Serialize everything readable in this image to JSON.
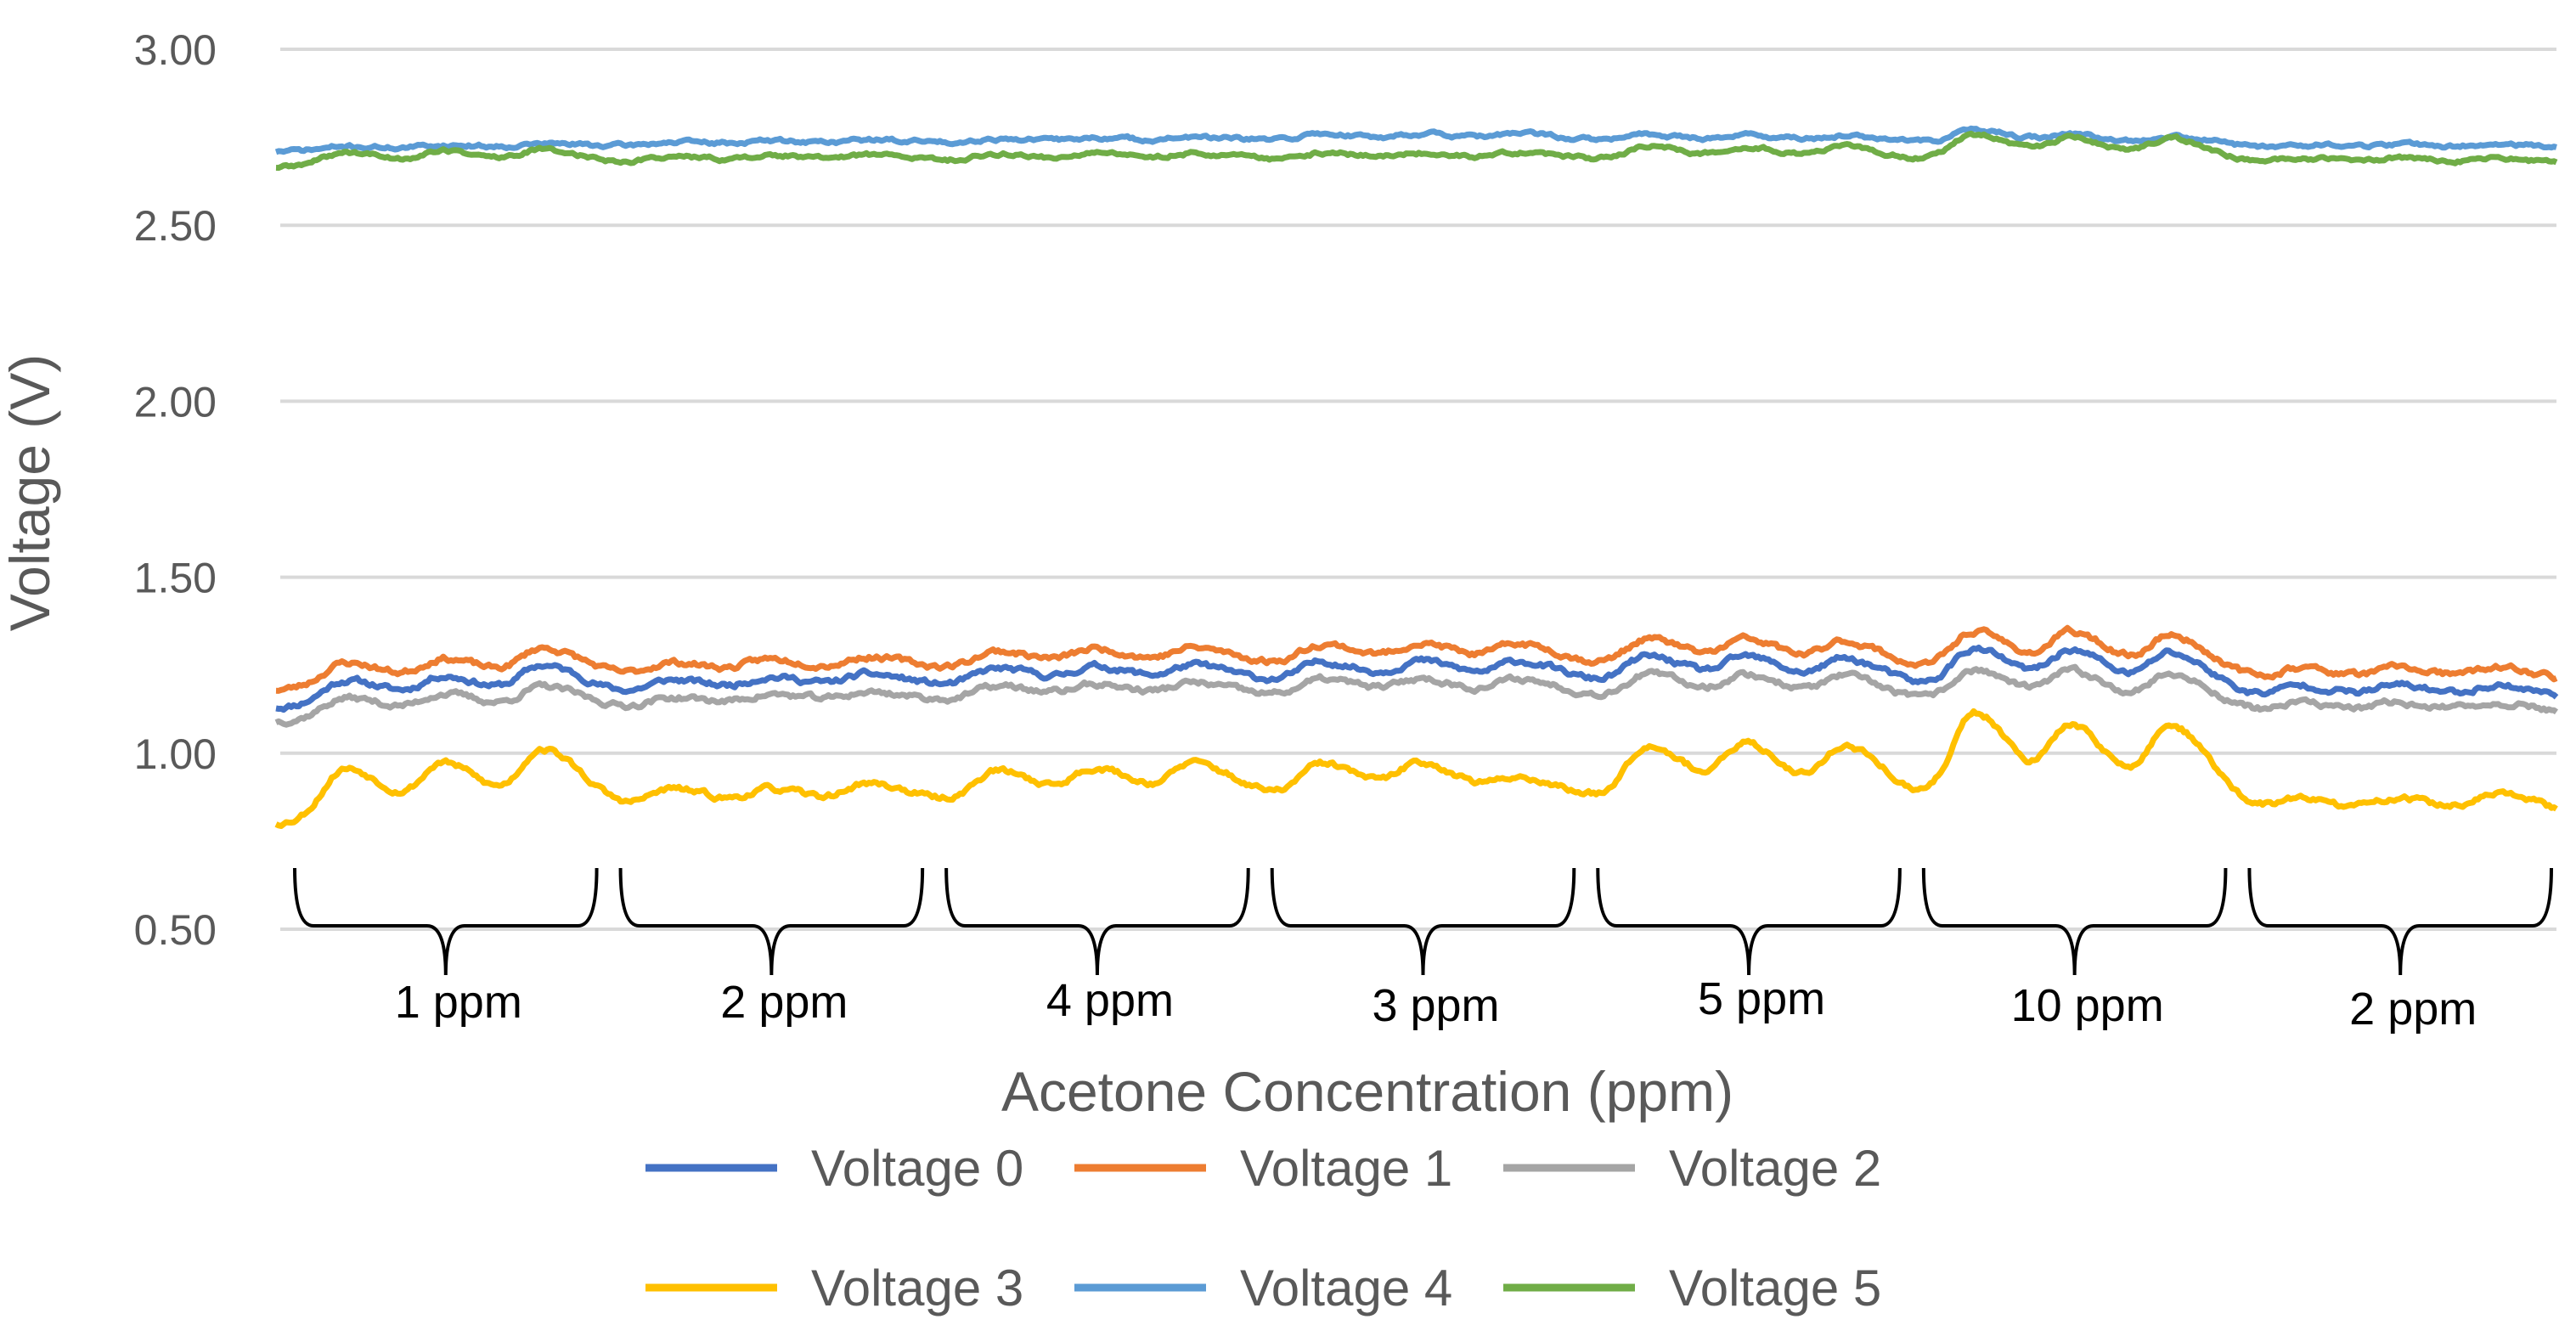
{
  "chart_data": {
    "type": "line",
    "title": "",
    "xlabel": "Acetone Concentration (ppm)",
    "ylabel": "Voltage (V)",
    "ylim": [
      0.5,
      3.0
    ],
    "yticks": [
      "0.50",
      "1.00",
      "1.50",
      "2.00",
      "2.50",
      "3.00"
    ],
    "grid": true,
    "legend_position": "bottom",
    "x_segments": [
      "1 ppm",
      "2 ppm",
      "4 ppm",
      "3 ppm",
      "5 ppm",
      "10 ppm",
      "2 ppm"
    ],
    "series": [
      {
        "name": "Voltage 0",
        "color": "#4472C4",
        "base": 1.13,
        "drift": 0.07,
        "peaks": [
          0.07,
          0.07,
          0.09,
          0.04,
          0.04,
          0.04,
          0.05,
          0.05,
          0.05,
          0.06,
          0.06,
          0.06,
          0.08,
          0.08,
          0.08,
          0.12,
          0.12,
          0.12,
          0.04,
          0.04,
          0.04
        ],
        "noise": 0.012,
        "seed": 11
      },
      {
        "name": "Voltage 1",
        "color": "#ED7D31",
        "base": 1.18,
        "drift": 0.07,
        "peaks": [
          0.07,
          0.07,
          0.09,
          0.04,
          0.04,
          0.04,
          0.05,
          0.05,
          0.05,
          0.06,
          0.06,
          0.06,
          0.08,
          0.08,
          0.08,
          0.12,
          0.12,
          0.12,
          0.04,
          0.04,
          0.04
        ],
        "noise": 0.012,
        "seed": 23
      },
      {
        "name": "Voltage 2",
        "color": "#A5A5A5",
        "base": 1.09,
        "drift": 0.07,
        "peaks": [
          0.06,
          0.06,
          0.07,
          0.03,
          0.03,
          0.03,
          0.04,
          0.04,
          0.04,
          0.05,
          0.05,
          0.05,
          0.07,
          0.07,
          0.07,
          0.1,
          0.1,
          0.1,
          0.03,
          0.03,
          0.03
        ],
        "noise": 0.012,
        "seed": 37
      },
      {
        "name": "Voltage 3",
        "color": "#FFC000",
        "base": 0.8,
        "drift": 0.07,
        "peaks": [
          0.15,
          0.15,
          0.18,
          0.06,
          0.05,
          0.06,
          0.09,
          0.09,
          0.1,
          0.1,
          0.1,
          0.06,
          0.16,
          0.16,
          0.16,
          0.27,
          0.23,
          0.24,
          0.05,
          0.05,
          0.06
        ],
        "noise": 0.012,
        "seed": 53
      },
      {
        "name": "Voltage 4",
        "color": "#5B9BD5",
        "base": 2.71,
        "drift": 0.03,
        "peaks": [
          0.01,
          0.01,
          0.01,
          0.01,
          0.01,
          0.01,
          0.01,
          0.01,
          0.01,
          0.02,
          0.02,
          0.02,
          0.02,
          0.02,
          0.02,
          0.04,
          0.03,
          0.03,
          0.01,
          0.01,
          0.01
        ],
        "noise": 0.008,
        "seed": 71
      },
      {
        "name": "Voltage 5",
        "color": "#70AD47",
        "base": 2.665,
        "drift": 0.02,
        "peaks": [
          0.04,
          0.04,
          0.04,
          0.02,
          0.02,
          0.02,
          0.02,
          0.02,
          0.02,
          0.02,
          0.02,
          0.02,
          0.04,
          0.04,
          0.04,
          0.08,
          0.07,
          0.07,
          0.02,
          0.02,
          0.02
        ],
        "noise": 0.008,
        "seed": 89
      }
    ]
  }
}
